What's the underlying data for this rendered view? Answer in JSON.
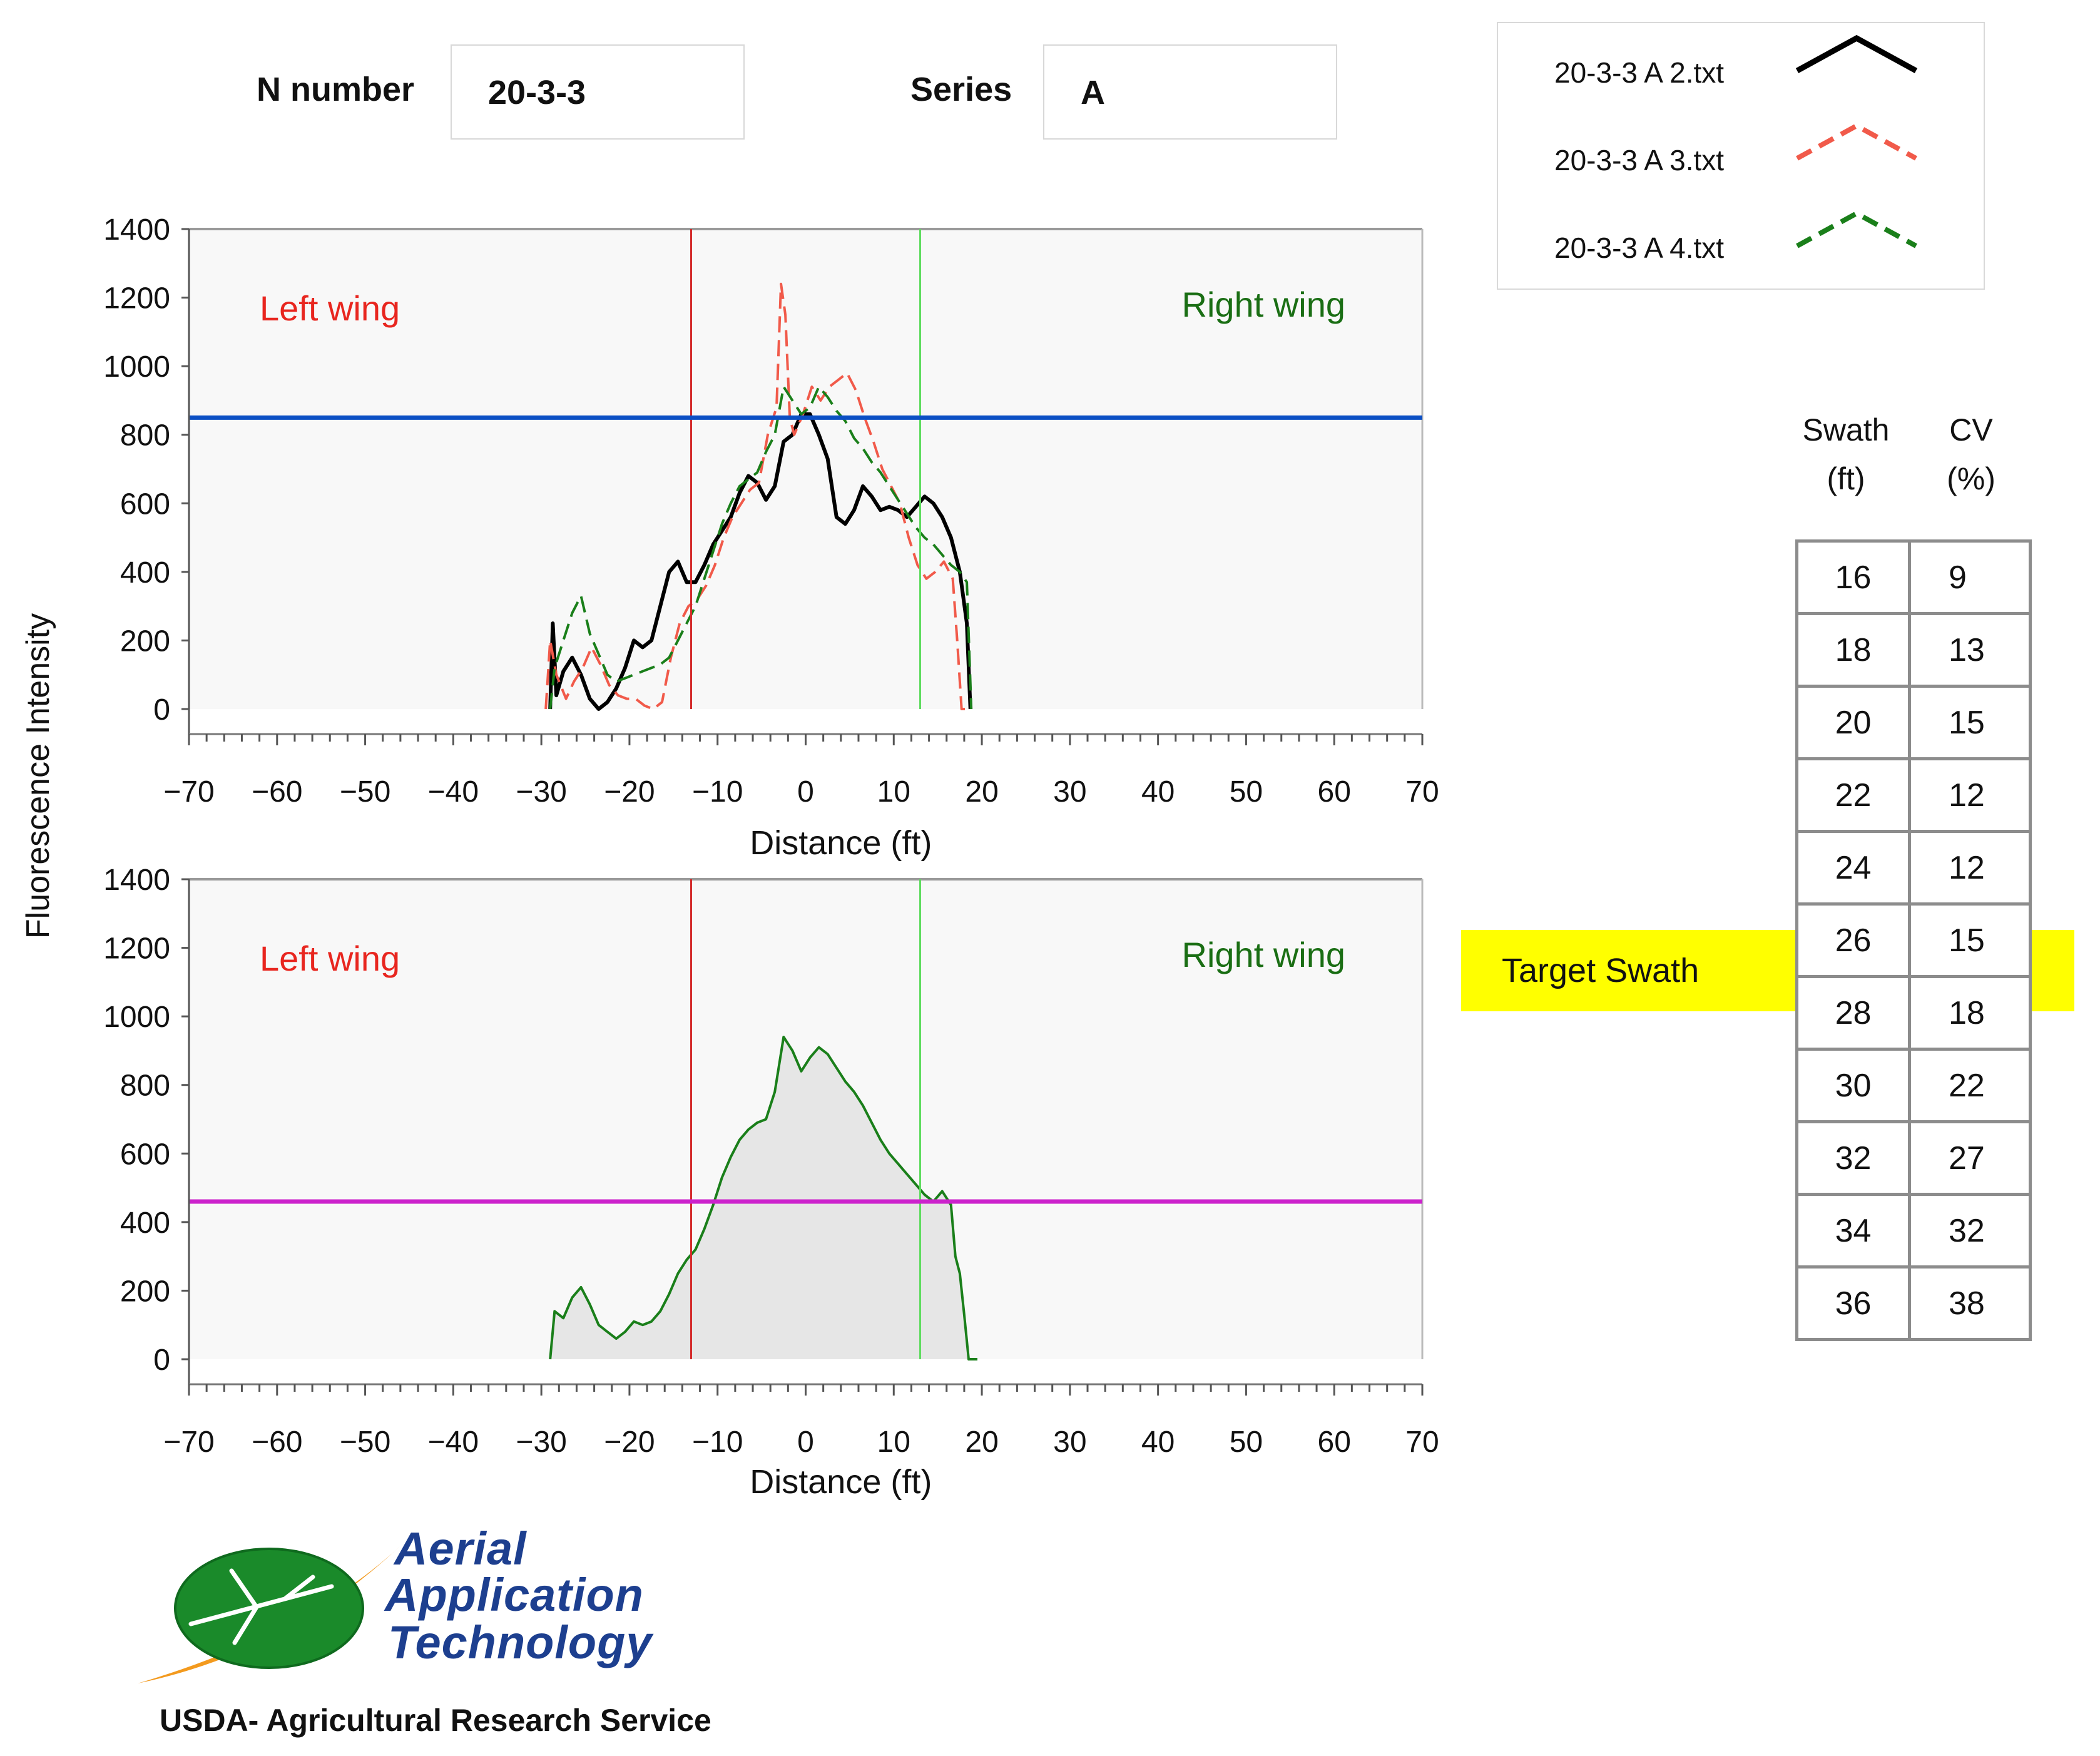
{
  "header": {
    "n_number_label": "N number",
    "n_number_value": "20-3-3",
    "series_label": "Series",
    "series_value": "A"
  },
  "legend": [
    {
      "label": "20-3-3 A 2.txt",
      "color": "#000000",
      "dash": "solid"
    },
    {
      "label": "20-3-3 A 3.txt",
      "color": "#f15a4a",
      "dash": "dashed"
    },
    {
      "label": "20-3-3 A 4.txt",
      "color": "#1a7f1a",
      "dash": "dashed"
    }
  ],
  "y_axis_title": "Fluorescence Intensity",
  "chart_data": [
    {
      "type": "line",
      "xlabel": "Distance (ft)",
      "ylabel": "Fluorescence Intensity",
      "xlim": [
        -70,
        70
      ],
      "ylim": [
        0,
        1400
      ],
      "x_ticks": [
        "−70",
        "−60",
        "−50",
        "−40",
        "−30",
        "−20",
        "−10",
        "0",
        "10",
        "20",
        "30",
        "40",
        "50",
        "60",
        "70"
      ],
      "y_ticks": [
        "0",
        "200",
        "400",
        "600",
        "800",
        "1000",
        "1200",
        "1400"
      ],
      "annotations": {
        "left": "Left wing",
        "right": "Right wing"
      },
      "hline": {
        "value": 850,
        "color": "#0b4fc4"
      },
      "vlines": [
        {
          "x": -13,
          "color": "#d42a2a"
        },
        {
          "x": 13,
          "color": "#5fdc5f"
        }
      ],
      "series": [
        {
          "name": "20-3-3 A 2.txt",
          "color": "#000000",
          "dash": "solid",
          "width": 6,
          "points": [
            [
              -29,
              0
            ],
            [
              -28.7,
              250
            ],
            [
              -28.3,
              40
            ],
            [
              -27.5,
              110
            ],
            [
              -26.5,
              150
            ],
            [
              -25.5,
              100
            ],
            [
              -24.5,
              30
            ],
            [
              -23.5,
              0
            ],
            [
              -22.5,
              20
            ],
            [
              -21.5,
              60
            ],
            [
              -20.5,
              120
            ],
            [
              -19.5,
              200
            ],
            [
              -18.5,
              180
            ],
            [
              -17.5,
              200
            ],
            [
              -16.5,
              300
            ],
            [
              -15.5,
              400
            ],
            [
              -14.5,
              430
            ],
            [
              -13.5,
              370
            ],
            [
              -12.5,
              370
            ],
            [
              -11.5,
              420
            ],
            [
              -10.5,
              480
            ],
            [
              -9.5,
              520
            ],
            [
              -8.5,
              560
            ],
            [
              -7.5,
              630
            ],
            [
              -6.5,
              680
            ],
            [
              -5.5,
              660
            ],
            [
              -4.5,
              610
            ],
            [
              -3.5,
              650
            ],
            [
              -2.5,
              780
            ],
            [
              -1.5,
              800
            ],
            [
              -0.5,
              860
            ],
            [
              0.5,
              860
            ],
            [
              1.5,
              800
            ],
            [
              2.5,
              730
            ],
            [
              3.5,
              560
            ],
            [
              4.5,
              540
            ],
            [
              5.5,
              580
            ],
            [
              6.5,
              650
            ],
            [
              7.5,
              620
            ],
            [
              8.5,
              580
            ],
            [
              9.5,
              590
            ],
            [
              10.5,
              580
            ],
            [
              11.5,
              560
            ],
            [
              12.5,
              590
            ],
            [
              13.5,
              620
            ],
            [
              14.5,
              600
            ],
            [
              15.5,
              560
            ],
            [
              16.5,
              500
            ],
            [
              17.5,
              400
            ],
            [
              18.3,
              250
            ],
            [
              18.7,
              0
            ]
          ]
        },
        {
          "name": "20-3-3 A 3.txt",
          "color": "#f15a4a",
          "dash": "dashed",
          "width": 4,
          "points": [
            [
              -29.5,
              0
            ],
            [
              -29,
              200
            ],
            [
              -28.3,
              100
            ],
            [
              -27.2,
              30
            ],
            [
              -26.3,
              80
            ],
            [
              -25.3,
              120
            ],
            [
              -24.3,
              180
            ],
            [
              -23.3,
              130
            ],
            [
              -22.3,
              70
            ],
            [
              -21.3,
              40
            ],
            [
              -20.3,
              30
            ],
            [
              -19.3,
              30
            ],
            [
              -18.3,
              10
            ],
            [
              -17.3,
              0
            ],
            [
              -16.3,
              20
            ],
            [
              -15.3,
              150
            ],
            [
              -14.3,
              250
            ],
            [
              -13.3,
              300
            ],
            [
              -12.3,
              320
            ],
            [
              -11.3,
              360
            ],
            [
              -10.3,
              420
            ],
            [
              -9.3,
              500
            ],
            [
              -8.3,
              560
            ],
            [
              -7.3,
              600
            ],
            [
              -6.3,
              640
            ],
            [
              -5.3,
              660
            ],
            [
              -4.3,
              800
            ],
            [
              -3.3,
              880
            ],
            [
              -2.8,
              1240
            ],
            [
              -2.3,
              1150
            ],
            [
              -1.8,
              850
            ],
            [
              -1.3,
              800
            ],
            [
              -0.3,
              860
            ],
            [
              0.7,
              940
            ],
            [
              1.7,
              900
            ],
            [
              2.7,
              940
            ],
            [
              3.7,
              960
            ],
            [
              4.7,
              980
            ],
            [
              5.7,
              930
            ],
            [
              6.7,
              850
            ],
            [
              7.7,
              780
            ],
            [
              8.7,
              700
            ],
            [
              9.7,
              650
            ],
            [
              10.7,
              600
            ],
            [
              11.7,
              500
            ],
            [
              12.7,
              420
            ],
            [
              13.7,
              380
            ],
            [
              14.7,
              400
            ],
            [
              15.7,
              430
            ],
            [
              16.7,
              380
            ],
            [
              17.2,
              200
            ],
            [
              17.7,
              0
            ],
            [
              18.7,
              0
            ]
          ]
        },
        {
          "name": "20-3-3 A 4.txt",
          "color": "#1a7f1a",
          "dash": "dashed",
          "width": 4,
          "points": [
            [
              -29,
              0
            ],
            [
              -28.5,
              120
            ],
            [
              -27.5,
              200
            ],
            [
              -26.5,
              280
            ],
            [
              -25.5,
              330
            ],
            [
              -24.5,
              220
            ],
            [
              -23.5,
              160
            ],
            [
              -22.5,
              100
            ],
            [
              -21.5,
              80
            ],
            [
              -20.5,
              90
            ],
            [
              -19.5,
              100
            ],
            [
              -18.5,
              110
            ],
            [
              -17.5,
              120
            ],
            [
              -16.5,
              130
            ],
            [
              -15.5,
              150
            ],
            [
              -14.5,
              200
            ],
            [
              -13.5,
              250
            ],
            [
              -12.5,
              300
            ],
            [
              -11.5,
              380
            ],
            [
              -10.5,
              460
            ],
            [
              -9.5,
              540
            ],
            [
              -8.5,
              600
            ],
            [
              -7.5,
              650
            ],
            [
              -6.5,
              670
            ],
            [
              -5.5,
              690
            ],
            [
              -4.5,
              750
            ],
            [
              -3.5,
              800
            ],
            [
              -2.5,
              940
            ],
            [
              -1.5,
              900
            ],
            [
              -0.5,
              860
            ],
            [
              0.5,
              880
            ],
            [
              1.5,
              940
            ],
            [
              2.5,
              910
            ],
            [
              3.5,
              870
            ],
            [
              4.5,
              840
            ],
            [
              5.5,
              790
            ],
            [
              6.5,
              760
            ],
            [
              7.5,
              720
            ],
            [
              8.5,
              690
            ],
            [
              9.5,
              650
            ],
            [
              10.5,
              610
            ],
            [
              11.5,
              570
            ],
            [
              12.5,
              530
            ],
            [
              13.5,
              500
            ],
            [
              14.5,
              480
            ],
            [
              15.5,
              450
            ],
            [
              16.5,
              420
            ],
            [
              17.5,
              400
            ],
            [
              18.3,
              370
            ],
            [
              18.8,
              0
            ]
          ]
        }
      ]
    },
    {
      "type": "area",
      "xlabel": "Distance (ft)",
      "ylabel": "Fluorescence Intensity",
      "xlim": [
        -70,
        70
      ],
      "ylim": [
        0,
        1400
      ],
      "x_ticks": [
        "−70",
        "−60",
        "−50",
        "−40",
        "−30",
        "−20",
        "−10",
        "0",
        "10",
        "20",
        "30",
        "40",
        "50",
        "60",
        "70"
      ],
      "y_ticks": [
        "0",
        "200",
        "400",
        "600",
        "800",
        "1000",
        "1200",
        "1400"
      ],
      "annotations": {
        "left": "Left wing",
        "right": "Right wing"
      },
      "hline": {
        "value": 460,
        "color": "#cc22cc"
      },
      "vlines": [
        {
          "x": -13,
          "color": "#d42a2a"
        },
        {
          "x": 13,
          "color": "#5fdc5f"
        }
      ],
      "series": [
        {
          "color": "#1a7f1a",
          "fill": "#e6e6e6",
          "width": 4,
          "points": [
            [
              -29,
              0
            ],
            [
              -28.5,
              140
            ],
            [
              -27.5,
              120
            ],
            [
              -26.5,
              180
            ],
            [
              -25.5,
              210
            ],
            [
              -24.5,
              160
            ],
            [
              -23.5,
              100
            ],
            [
              -22.5,
              80
            ],
            [
              -21.5,
              60
            ],
            [
              -20.5,
              80
            ],
            [
              -19.5,
              110
            ],
            [
              -18.5,
              100
            ],
            [
              -17.5,
              110
            ],
            [
              -16.5,
              140
            ],
            [
              -15.5,
              190
            ],
            [
              -14.5,
              250
            ],
            [
              -13.5,
              290
            ],
            [
              -12.5,
              320
            ],
            [
              -11.5,
              380
            ],
            [
              -10.5,
              450
            ],
            [
              -9.5,
              530
            ],
            [
              -8.5,
              590
            ],
            [
              -7.5,
              640
            ],
            [
              -6.5,
              670
            ],
            [
              -5.5,
              690
            ],
            [
              -4.5,
              700
            ],
            [
              -3.5,
              780
            ],
            [
              -2.5,
              940
            ],
            [
              -1.5,
              900
            ],
            [
              -0.5,
              840
            ],
            [
              0.5,
              880
            ],
            [
              1.5,
              910
            ],
            [
              2.5,
              890
            ],
            [
              3.5,
              850
            ],
            [
              4.5,
              810
            ],
            [
              5.5,
              780
            ],
            [
              6.5,
              740
            ],
            [
              7.5,
              690
            ],
            [
              8.5,
              640
            ],
            [
              9.5,
              600
            ],
            [
              10.5,
              570
            ],
            [
              11.5,
              540
            ],
            [
              12.5,
              510
            ],
            [
              13.5,
              480
            ],
            [
              14.5,
              460
            ],
            [
              15.5,
              490
            ],
            [
              16.5,
              450
            ],
            [
              17.0,
              300
            ],
            [
              17.5,
              250
            ],
            [
              18.0,
              130
            ],
            [
              18.5,
              0
            ],
            [
              19.5,
              0
            ]
          ]
        }
      ]
    }
  ],
  "table": {
    "col1_header_line1": "Swath",
    "col1_header_line2": "(ft)",
    "col2_header_line1": "CV",
    "col2_header_line2": "(%)",
    "rows": [
      {
        "swath": "16",
        "cv": "9"
      },
      {
        "swath": "18",
        "cv": "13"
      },
      {
        "swath": "20",
        "cv": "15"
      },
      {
        "swath": "22",
        "cv": "12"
      },
      {
        "swath": "24",
        "cv": "12"
      },
      {
        "swath": "26",
        "cv": "15"
      },
      {
        "swath": "28",
        "cv": "18"
      },
      {
        "swath": "30",
        "cv": "22"
      },
      {
        "swath": "32",
        "cv": "27"
      },
      {
        "swath": "34",
        "cv": "32"
      },
      {
        "swath": "36",
        "cv": "38"
      }
    ],
    "target_label": "Target Swath",
    "target_row_index": 5,
    "highlight_color": "#ffff00"
  },
  "logo": {
    "line1": "Aerial",
    "line2": "Application",
    "line3": "Technology",
    "org": "USDA- Agricultural Research Service",
    "colors": {
      "green": "#1a8a2a",
      "orange": "#f39a1e",
      "blue": "#1d3f8f"
    }
  }
}
